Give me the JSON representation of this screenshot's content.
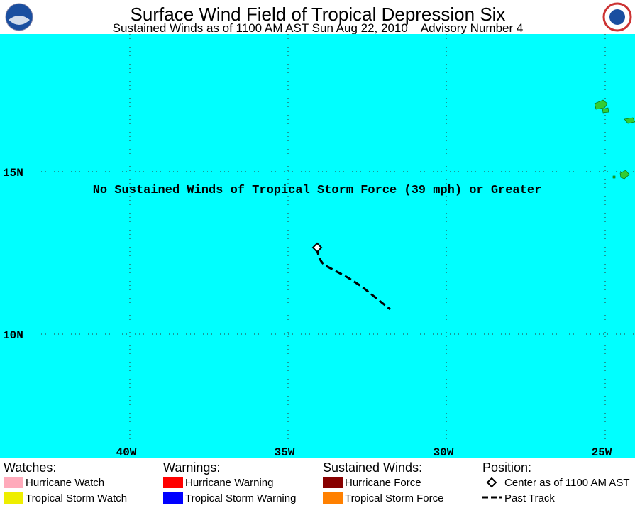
{
  "header": {
    "title": "Surface Wind Field of Tropical Depression Six",
    "subtitle": "Sustained Winds as of 1100 AM AST Sun Aug 22, 2010    Advisory Number 4"
  },
  "map": {
    "message": "No Sustained Winds of Tropical Storm Force (39 mph) or Greater",
    "lat_labels": [
      "15N",
      "10N"
    ],
    "lon_labels": [
      "40W",
      "35W",
      "30W",
      "25W"
    ]
  },
  "legend": {
    "watches": {
      "title": "Watches:",
      "items": [
        {
          "label": "Hurricane Watch",
          "color": "#ffaabb"
        },
        {
          "label": "Tropical Storm Watch",
          "color": "#eeee00"
        }
      ]
    },
    "warnings": {
      "title": "Warnings:",
      "items": [
        {
          "label": "Hurricane Warning",
          "color": "#ff0000"
        },
        {
          "label": "Tropical Storm Warning",
          "color": "#0000ff"
        }
      ]
    },
    "winds": {
      "title": "Sustained Winds:",
      "items": [
        {
          "label": "Hurricane Force",
          "color": "#880000"
        },
        {
          "label": "Tropical Storm Force",
          "color": "#ff8000"
        }
      ]
    },
    "position": {
      "title": "Position:",
      "items": [
        {
          "label": "Center as of 1100 AM AST"
        },
        {
          "label": "Past Track"
        }
      ]
    }
  }
}
